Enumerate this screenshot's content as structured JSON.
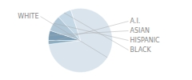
{
  "chart_data": {
    "type": "pie",
    "categories": [
      "WHITE",
      "A.I.",
      "ASIAN",
      "HISPANIC",
      "BLACK"
    ],
    "values": [
      78,
      2,
      5,
      8,
      7
    ],
    "colors": [
      "#d9e4ed",
      "#8bafc4",
      "#7a9db5",
      "#b0c8d8",
      "#c5d8e5"
    ]
  }
}
